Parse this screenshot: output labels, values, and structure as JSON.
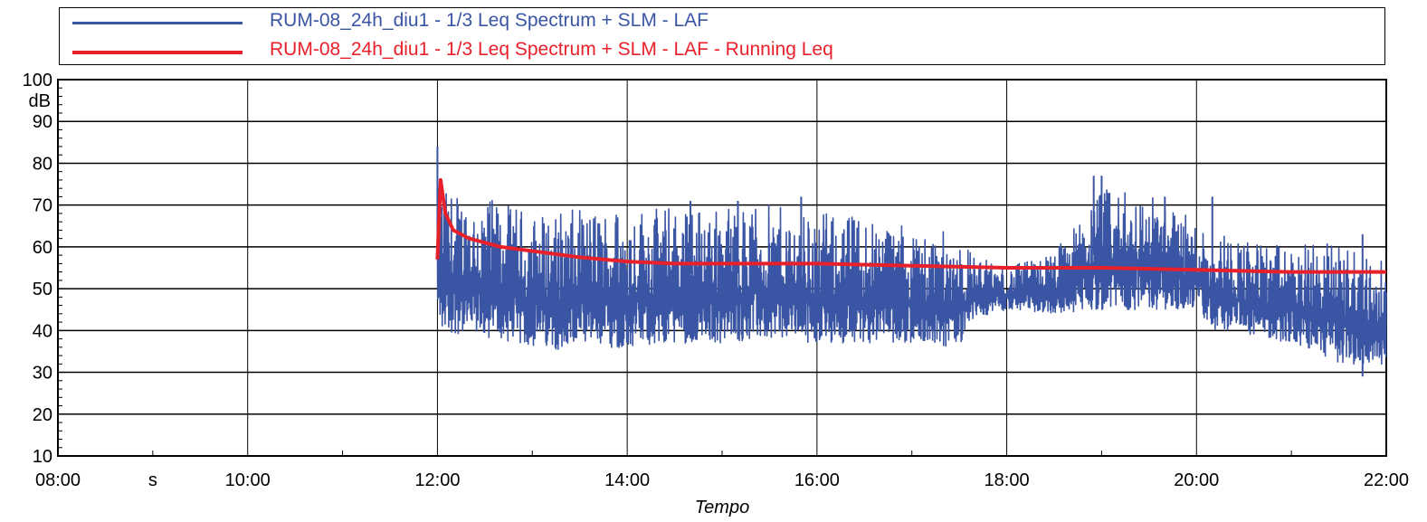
{
  "legend": {
    "items": [
      {
        "label": "RUM-08_24h_diu1 - 1/3 Leq Spectrum + SLM - LAF",
        "color": "#3a55a3"
      },
      {
        "label": "RUM-08_24h_diu1 - 1/3 Leq Spectrum + SLM - LAF - Running Leq",
        "color": "#e8202a"
      }
    ]
  },
  "chart_data": {
    "type": "line",
    "xlabel": "Tempo",
    "ylabel": "dB",
    "ylim": [
      10,
      100
    ],
    "y_ticks": [
      "10",
      "20",
      "30",
      "40",
      "50",
      "60",
      "70",
      "80",
      "90",
      "100"
    ],
    "xlim": [
      "08:00",
      "22:00"
    ],
    "x_ticks": [
      "08:00",
      "s",
      "10:00",
      "12:00",
      "14:00",
      "16:00",
      "18:00",
      "20:00",
      "22:00"
    ],
    "grid": true,
    "legend_position": "top",
    "series": [
      {
        "name": "RUM-08_24h_diu1 - 1/3 Leq Spectrum + SLM - LAF",
        "color": "#3a55a3",
        "style": "noisy envelope",
        "x": [
          "12:00",
          "12:30",
          "13:00",
          "13:30",
          "14:00",
          "14:30",
          "15:00",
          "15:30",
          "16:00",
          "16:30",
          "17:00",
          "17:30",
          "17:40",
          "18:00",
          "18:30",
          "19:00",
          "19:30",
          "20:00",
          "20:10",
          "20:30",
          "21:00",
          "21:30",
          "22:00"
        ],
        "min": [
          40,
          38,
          36,
          35,
          36,
          37,
          37,
          38,
          37,
          37,
          37,
          36,
          43,
          45,
          44,
          45,
          45,
          45,
          40,
          39,
          37,
          32,
          32
        ],
        "max": [
          74,
          72,
          68,
          69,
          70,
          70,
          70,
          70,
          68,
          68,
          65,
          63,
          58,
          55,
          59,
          74,
          73,
          66,
          65,
          62,
          60,
          62,
          56
        ],
        "peaks": [
          {
            "x": "12:00",
            "y": 84
          },
          {
            "x": "14:40",
            "y": 71
          },
          {
            "x": "15:10",
            "y": 71
          },
          {
            "x": "15:50",
            "y": 72
          },
          {
            "x": "18:55",
            "y": 77
          },
          {
            "x": "19:00",
            "y": 77
          },
          {
            "x": "19:40",
            "y": 72
          },
          {
            "x": "20:10",
            "y": 72
          },
          {
            "x": "21:45",
            "y": 63
          },
          {
            "x": "21:45",
            "y": 29
          }
        ]
      },
      {
        "name": "RUM-08_24h_diu1 - 1/3 Leq Spectrum + SLM - LAF - Running Leq",
        "color": "#e8202a",
        "style": "line",
        "x": [
          "12:00",
          "12:02",
          "12:05",
          "12:10",
          "12:20",
          "12:40",
          "13:00",
          "13:30",
          "14:00",
          "14:30",
          "15:00",
          "16:00",
          "17:00",
          "18:00",
          "19:00",
          "20:00",
          "21:00",
          "22:00"
        ],
        "y": [
          57,
          76,
          68,
          64,
          62,
          60,
          59,
          57.5,
          56.5,
          56,
          56,
          56,
          55.5,
          55,
          55,
          54.5,
          54,
          54
        ]
      }
    ]
  }
}
